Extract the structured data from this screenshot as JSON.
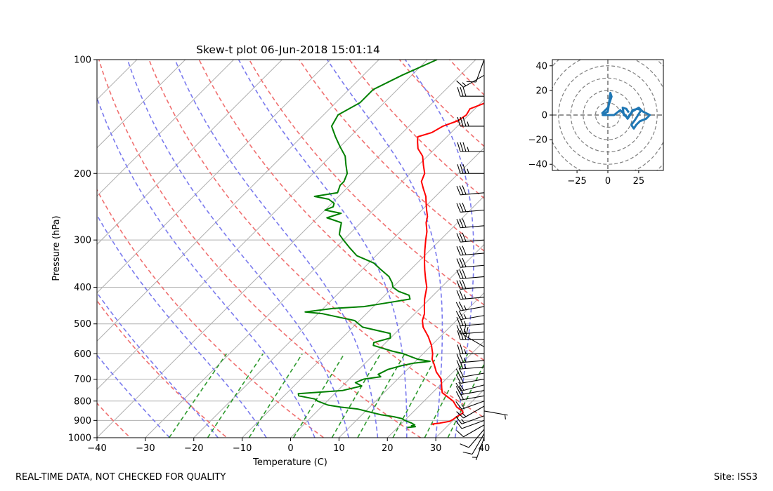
{
  "chart_data": [
    {
      "type": "line",
      "subtype": "skew-t log-p sounding",
      "title": "Skew-t plot 06-Jun-2018 15:01:14",
      "xlabel": "Temperature (C)",
      "ylabel": "Pressure (hPa)",
      "xlim": [
        -40,
        40
      ],
      "ylim": [
        1000,
        100
      ],
      "x_ticks": [
        "−40",
        "−30",
        "−20",
        "−10",
        "0",
        "10",
        "20",
        "30",
        "40"
      ],
      "y_ticks": [
        "1000",
        "900",
        "800",
        "700",
        "600",
        "500",
        "400",
        "300",
        "200",
        "100"
      ],
      "dry_adiabats_potential_temp_K": [
        220,
        240,
        260,
        280,
        300,
        320,
        340,
        360,
        380,
        400,
        420,
        440,
        460,
        480
      ],
      "moist_adiabats_start_temp_C": [
        -25,
        -15,
        -5,
        5,
        12,
        18,
        24,
        30,
        34
      ],
      "mixing_ratio_lines_g_per_kg": [
        0.5,
        1,
        2,
        4,
        7,
        10,
        16,
        24,
        32
      ],
      "series": [
        {
          "name": "Temperature",
          "color": "#ff0000",
          "points": [
            [
              925,
              27
            ],
            [
              920,
              26.5
            ],
            [
              915,
              27.8
            ],
            [
              905,
              29.5
            ],
            [
              895,
              29.8
            ],
            [
              880,
              30
            ],
            [
              860,
              30.5
            ],
            [
              850,
              30
            ],
            [
              830,
              28
            ],
            [
              800,
              26
            ],
            [
              780,
              24
            ],
            [
              760,
              22
            ],
            [
              740,
              21
            ],
            [
              700,
              19
            ],
            [
              670,
              16.5
            ],
            [
              640,
              14.5
            ],
            [
              620,
              13
            ],
            [
              600,
              12
            ],
            [
              570,
              10
            ],
            [
              540,
              7.5
            ],
            [
              510,
              4.5
            ],
            [
              490,
              3
            ],
            [
              470,
              2
            ],
            [
              450,
              0.5
            ],
            [
              430,
              -1
            ],
            [
              400,
              -3
            ],
            [
              380,
              -5
            ],
            [
              360,
              -7
            ],
            [
              340,
              -9
            ],
            [
              320,
              -11
            ],
            [
              300,
              -13
            ],
            [
              285,
              -14.5
            ],
            [
              270,
              -16.5
            ],
            [
              260,
              -17.5
            ],
            [
              250,
              -19
            ],
            [
              240,
              -20.5
            ],
            [
              230,
              -22
            ],
            [
              220,
              -24
            ],
            [
              210,
              -26
            ],
            [
              200,
              -27
            ],
            [
              190,
              -29
            ],
            [
              180,
              -31
            ],
            [
              172,
              -33.5
            ],
            [
              165,
              -35
            ],
            [
              160,
              -36
            ],
            [
              156,
              -34
            ],
            [
              150,
              -33
            ],
            [
              145,
              -31
            ],
            [
              140,
              -30.5
            ],
            [
              135,
              -31
            ],
            [
              130,
              -29
            ],
            [
              125,
              -28
            ],
            [
              120,
              -25
            ],
            [
              115,
              -22
            ],
            [
              110,
              -19
            ],
            [
              105,
              -16
            ],
            [
              100,
              -14
            ]
          ]
        },
        {
          "name": "Dewpoint",
          "color": "#008000",
          "points": [
            [
              940,
              22
            ],
            [
              935,
              23.5
            ],
            [
              930,
              22.5
            ],
            [
              925,
              23
            ],
            [
              915,
              22
            ],
            [
              900,
              20
            ],
            [
              890,
              19
            ],
            [
              880,
              17
            ],
            [
              870,
              14
            ],
            [
              860,
              12
            ],
            [
              850,
              10
            ],
            [
              840,
              8
            ],
            [
              830,
              4
            ],
            [
              820,
              1
            ],
            [
              800,
              -2
            ],
            [
              790,
              -3
            ],
            [
              775,
              -7
            ],
            [
              765,
              -7.5
            ],
            [
              750,
              1
            ],
            [
              730,
              4
            ],
            [
              715,
              2
            ],
            [
              700,
              3
            ],
            [
              690,
              6
            ],
            [
              680,
              5
            ],
            [
              660,
              6
            ],
            [
              645,
              8
            ],
            [
              635,
              10
            ],
            [
              628,
              13
            ],
            [
              620,
              10
            ],
            [
              610,
              8
            ],
            [
              600,
              6
            ],
            [
              590,
              3
            ],
            [
              570,
              -2
            ],
            [
              560,
              -2.5
            ],
            [
              545,
              0
            ],
            [
              530,
              -1
            ],
            [
              510,
              -8
            ],
            [
              490,
              -11
            ],
            [
              480,
              -15
            ],
            [
              470,
              -19
            ],
            [
              465,
              -23
            ],
            [
              455,
              -18
            ],
            [
              450,
              -12
            ],
            [
              440,
              -8
            ],
            [
              430,
              -4
            ],
            [
              420,
              -5
            ],
            [
              410,
              -8
            ],
            [
              400,
              -10
            ],
            [
              390,
              -11
            ],
            [
              375,
              -13
            ],
            [
              360,
              -16
            ],
            [
              345,
              -19
            ],
            [
              330,
              -24
            ],
            [
              315,
              -27
            ],
            [
              300,
              -30
            ],
            [
              290,
              -32
            ],
            [
              280,
              -33
            ],
            [
              270,
              -34
            ],
            [
              262,
              -38
            ],
            [
              255,
              -36
            ],
            [
              250,
              -40
            ],
            [
              245,
              -39
            ],
            [
              240,
              -39.5
            ],
            [
              234,
              -41.5
            ],
            [
              230,
              -45
            ],
            [
              225,
              -41
            ],
            [
              215,
              -42
            ],
            [
              210,
              -42
            ],
            [
              200,
              -43
            ],
            [
              190,
              -45
            ],
            [
              180,
              -47
            ],
            [
              170,
              -50
            ],
            [
              160,
              -53
            ],
            [
              150,
              -56
            ],
            [
              140,
              -57
            ],
            [
              130,
              -55
            ],
            [
              120,
              -55
            ],
            [
              110,
              -52
            ],
            [
              100,
              -48
            ]
          ]
        }
      ],
      "wind_barbs": [
        {
          "p": 1000,
          "speed_kt": 5,
          "dir_deg": 200
        },
        {
          "p": 975,
          "speed_kt": 10,
          "dir_deg": 210
        },
        {
          "p": 950,
          "speed_kt": 10,
          "dir_deg": 220
        },
        {
          "p": 925,
          "speed_kt": 10,
          "dir_deg": 240
        },
        {
          "p": 900,
          "speed_kt": 10,
          "dir_deg": 250
        },
        {
          "p": 875,
          "speed_kt": 15,
          "dir_deg": 250
        },
        {
          "p": 850,
          "speed_kt": 5,
          "dir_deg": 100
        },
        {
          "p": 825,
          "speed_kt": 15,
          "dir_deg": 240
        },
        {
          "p": 800,
          "speed_kt": 15,
          "dir_deg": 250
        },
        {
          "p": 775,
          "speed_kt": 20,
          "dir_deg": 260
        },
        {
          "p": 750,
          "speed_kt": 20,
          "dir_deg": 260
        },
        {
          "p": 725,
          "speed_kt": 20,
          "dir_deg": 255
        },
        {
          "p": 700,
          "speed_kt": 20,
          "dir_deg": 260
        },
        {
          "p": 675,
          "speed_kt": 20,
          "dir_deg": 260
        },
        {
          "p": 650,
          "speed_kt": 25,
          "dir_deg": 265
        },
        {
          "p": 625,
          "speed_kt": 25,
          "dir_deg": 265
        },
        {
          "p": 600,
          "speed_kt": 25,
          "dir_deg": 270
        },
        {
          "p": 575,
          "speed_kt": 25,
          "dir_deg": 300
        },
        {
          "p": 550,
          "speed_kt": 25,
          "dir_deg": 270
        },
        {
          "p": 525,
          "speed_kt": 25,
          "dir_deg": 265
        },
        {
          "p": 500,
          "speed_kt": 25,
          "dir_deg": 265
        },
        {
          "p": 475,
          "speed_kt": 25,
          "dir_deg": 260
        },
        {
          "p": 450,
          "speed_kt": 25,
          "dir_deg": 260
        },
        {
          "p": 425,
          "speed_kt": 25,
          "dir_deg": 265
        },
        {
          "p": 400,
          "speed_kt": 30,
          "dir_deg": 265
        },
        {
          "p": 375,
          "speed_kt": 30,
          "dir_deg": 265
        },
        {
          "p": 350,
          "speed_kt": 30,
          "dir_deg": 265
        },
        {
          "p": 325,
          "speed_kt": 30,
          "dir_deg": 265
        },
        {
          "p": 300,
          "speed_kt": 30,
          "dir_deg": 265
        },
        {
          "p": 275,
          "speed_kt": 30,
          "dir_deg": 265
        },
        {
          "p": 250,
          "speed_kt": 30,
          "dir_deg": 265
        },
        {
          "p": 225,
          "speed_kt": 30,
          "dir_deg": 265
        },
        {
          "p": 200,
          "speed_kt": 35,
          "dir_deg": 270
        },
        {
          "p": 175,
          "speed_kt": 35,
          "dir_deg": 270
        },
        {
          "p": 150,
          "speed_kt": 35,
          "dir_deg": 270
        },
        {
          "p": 125,
          "speed_kt": 30,
          "dir_deg": 270
        },
        {
          "p": 110,
          "speed_kt": 15,
          "dir_deg": 240
        },
        {
          "p": 100,
          "speed_kt": 10,
          "dir_deg": 200
        }
      ]
    },
    {
      "type": "line",
      "subtype": "hodograph",
      "xlim": [
        -45,
        45
      ],
      "ylim": [
        -45,
        45
      ],
      "x_ticks": [
        "−25",
        "0",
        "25"
      ],
      "y_ticks": [
        "40",
        "20",
        "0",
        "−20",
        "−40"
      ],
      "ring_radii": [
        10,
        20,
        30,
        40,
        50,
        60
      ],
      "series": [
        {
          "name": "wind",
          "color": "#1f77b4",
          "points": [
            [
              -5,
              1
            ],
            [
              0,
              6
            ],
            [
              3,
              15
            ],
            [
              2,
              18
            ],
            [
              1,
              10
            ],
            [
              0,
              3
            ],
            [
              -4,
              0
            ],
            [
              5,
              0
            ],
            [
              10,
              4
            ],
            [
              14,
              0
            ],
            [
              16,
              -3
            ],
            [
              18,
              0
            ],
            [
              20,
              3
            ],
            [
              25,
              6
            ],
            [
              28,
              3
            ],
            [
              34,
              0
            ],
            [
              31,
              -3
            ],
            [
              26,
              -5
            ],
            [
              23,
              -8
            ],
            [
              21,
              -11
            ],
            [
              19,
              -8
            ],
            [
              22,
              -4
            ],
            [
              27,
              4
            ],
            [
              24,
              5
            ],
            [
              20,
              4
            ],
            [
              19,
              2
            ],
            [
              16,
              -2
            ],
            [
              13,
              0
            ],
            [
              12,
              6
            ],
            [
              15,
              5
            ],
            [
              17,
              2
            ]
          ]
        }
      ]
    }
  ],
  "footer": {
    "left": "REAL-TIME DATA, NOT CHECKED FOR QUALITY",
    "right": "Site: ISS3"
  }
}
